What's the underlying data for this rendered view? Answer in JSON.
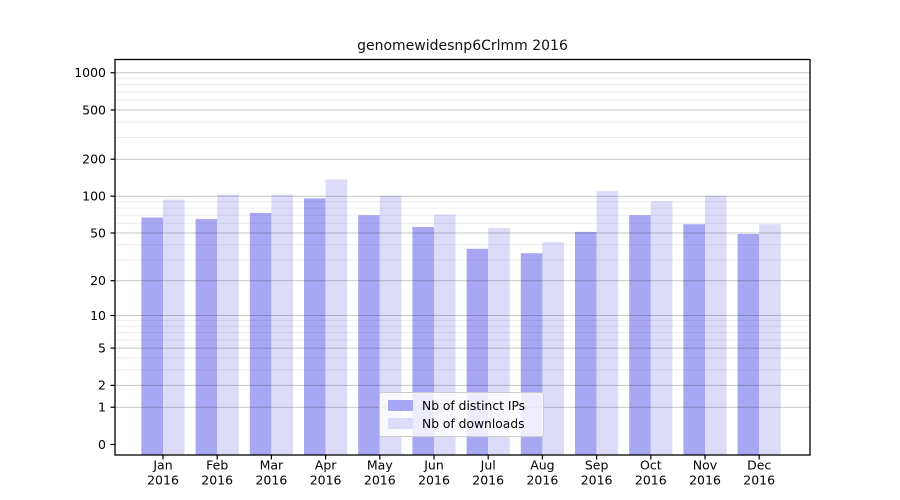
{
  "chart_data": {
    "type": "bar",
    "title": "genomewidesnp6Crlmm 2016",
    "categories": [
      "Jan",
      "Feb",
      "Mar",
      "Apr",
      "May",
      "Jun",
      "Jul",
      "Aug",
      "Sep",
      "Oct",
      "Nov",
      "Dec"
    ],
    "category_year": "2016",
    "series": [
      {
        "name": "Nb of distinct IPs",
        "color": "#a8a7f4",
        "values": [
          67,
          65,
          73,
          96,
          70,
          56,
          37,
          34,
          51,
          70,
          59,
          49
        ]
      },
      {
        "name": "Nb of downloads",
        "color": "#dcdcf9",
        "values": [
          94,
          103,
          103,
          137,
          101,
          71,
          55,
          42,
          110,
          91,
          101,
          59
        ]
      }
    ],
    "y_scale": "log1p",
    "y_ticks": [
      0,
      1,
      2,
      5,
      10,
      20,
      50,
      100,
      200,
      500,
      1000
    ],
    "y_minor_ticks": [
      3,
      4,
      6,
      7,
      8,
      9,
      30,
      40,
      60,
      70,
      80,
      90,
      300,
      400,
      600,
      700,
      800,
      900
    ],
    "ylim": [
      0,
      1300
    ],
    "xlabel": "",
    "ylabel": "",
    "grid": "major+minor",
    "legend": {
      "position": "lower center",
      "labels": [
        "Nb of distinct IPs",
        "Nb of downloads"
      ]
    },
    "colors": {
      "axis": "#000000",
      "text": "#000000",
      "grid_major": "rgba(0,0,0,0.22)",
      "grid_minor": "rgba(0,0,0,0.07)",
      "background": "#ffffff"
    }
  }
}
